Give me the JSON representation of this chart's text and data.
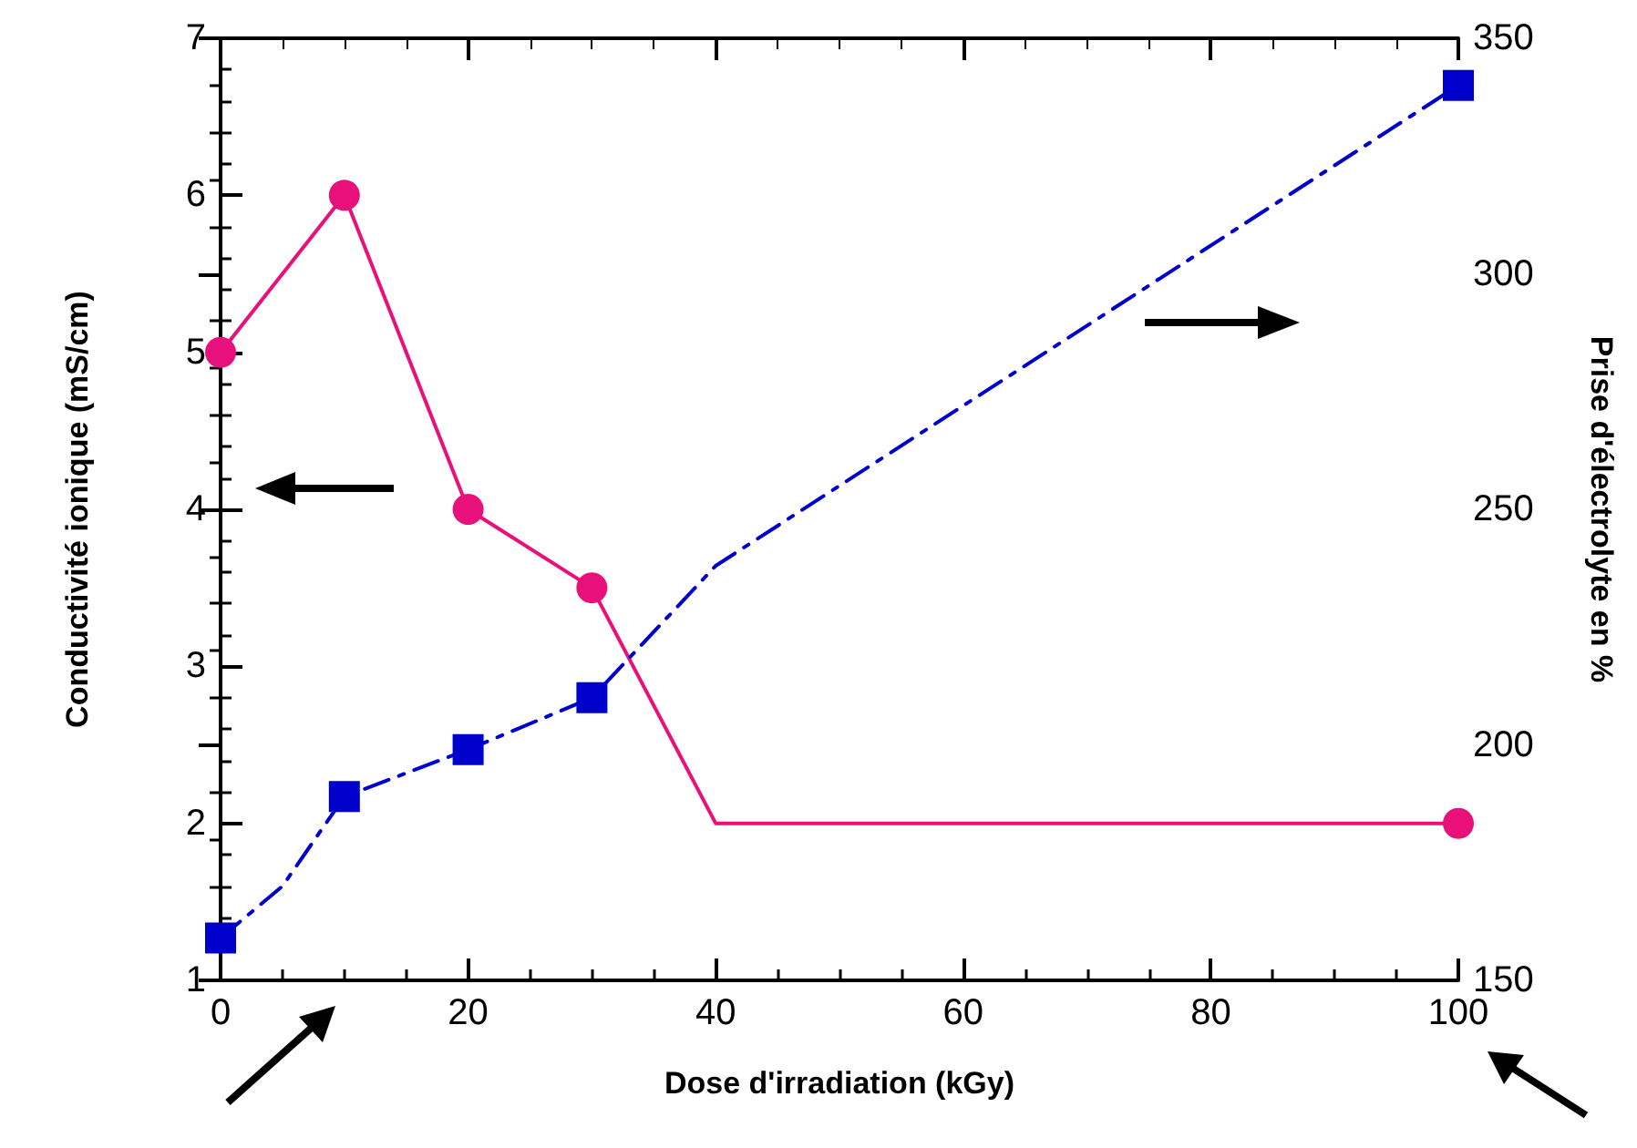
{
  "chart_data": {
    "type": "line",
    "xlabel": "Dose d'irradiation (kGy)",
    "ylabel": "Conductivité ionique (mS/cm)",
    "y2label": "Prise d'électrolyte en %",
    "xlim": [
      0,
      100
    ],
    "xticks": [
      0,
      20,
      40,
      60,
      80,
      100
    ],
    "ylim": [
      1,
      7
    ],
    "yticks": [
      1,
      2,
      3,
      4,
      5,
      6,
      7
    ],
    "y2lim": [
      150,
      350
    ],
    "y2ticks": [
      150,
      200,
      250,
      300,
      350
    ],
    "grid": false,
    "series": [
      {
        "color": "#e8107a",
        "x": [
          0,
          10,
          20,
          30,
          40,
          100
        ],
        "values": [
          5,
          6,
          4,
          3.5,
          2,
          2
        ],
        "marker": "none",
        "line_style": "solid"
      },
      {
        "type": "scatter",
        "color": "#e8107a",
        "x": [
          0,
          10,
          20,
          30,
          100
        ],
        "values": [
          5,
          6,
          4,
          3.5,
          2
        ],
        "marker": "circle"
      },
      {
        "axis": "y2",
        "color": "#0000cc",
        "x": [
          0,
          5,
          10,
          20,
          30,
          40,
          100
        ],
        "values": [
          159,
          170,
          189,
          199,
          210,
          238,
          340
        ],
        "marker": "none",
        "line_style": "dashed"
      },
      {
        "type": "scatter",
        "axis": "y2",
        "color": "#0000cc",
        "x": [
          0,
          10,
          20,
          30,
          100
        ],
        "values": [
          159,
          189,
          199,
          210,
          340
        ],
        "marker": "square"
      }
    ]
  }
}
